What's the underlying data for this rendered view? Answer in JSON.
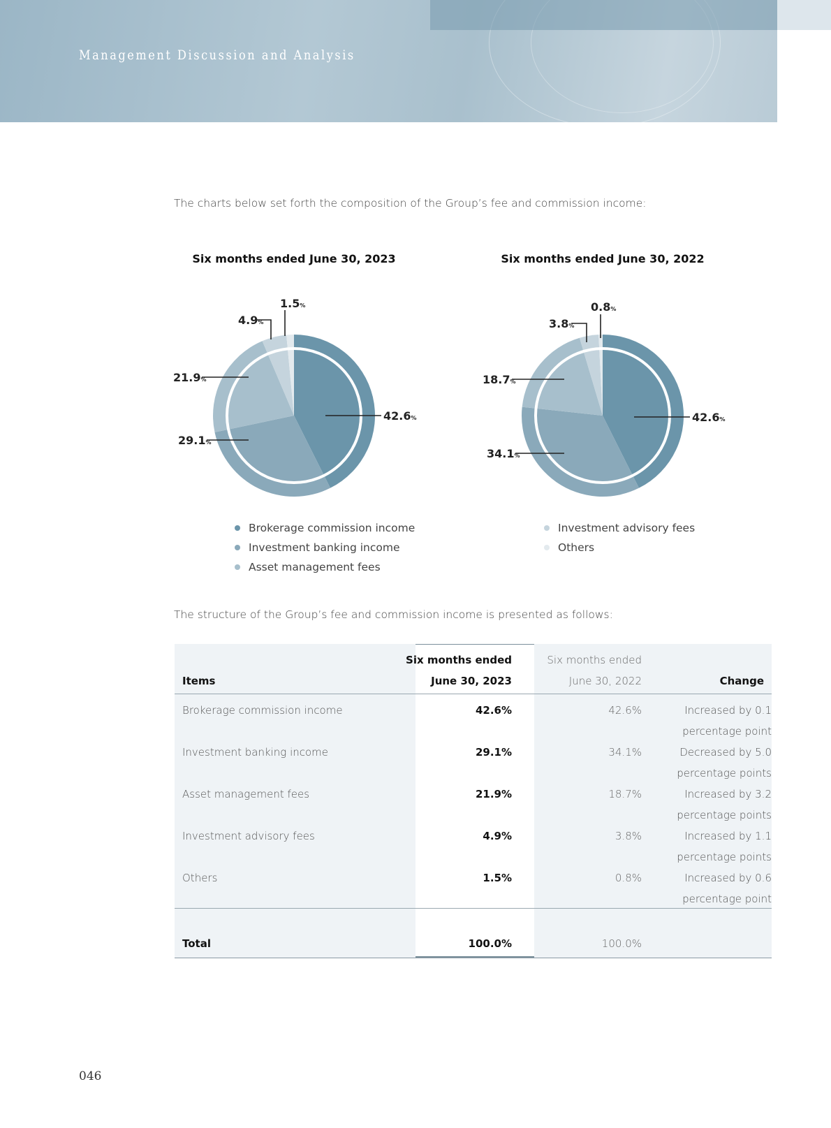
{
  "header": {
    "title": "Management Discussion and Analysis"
  },
  "intro": "The charts below set forth the composition of the Group’s fee and commission income:",
  "chart_data": [
    {
      "type": "pie",
      "title": "Six months ended June 30, 2023",
      "unit": "%",
      "labels": [
        "Brokerage commission income",
        "Investment banking income",
        "Asset management fees",
        "Investment advisory fees",
        "Others"
      ],
      "values": [
        42.6,
        29.1,
        21.9,
        4.9,
        1.5
      ],
      "value_labels": [
        "42.6",
        "29.1",
        "21.9",
        "4.9",
        "1.5"
      ]
    },
    {
      "type": "pie",
      "title": "Six months ended June 30, 2022",
      "unit": "%",
      "labels": [
        "Brokerage commission income",
        "Investment banking income",
        "Asset management fees",
        "Investment advisory fees",
        "Others"
      ],
      "values": [
        42.6,
        34.1,
        18.7,
        3.8,
        0.8
      ],
      "value_labels": [
        "42.6",
        "34.1",
        "18.7",
        "3.8",
        "0.8"
      ]
    }
  ],
  "colors": [
    "#6b95aa",
    "#8aa9ba",
    "#a7bfcc",
    "#c5d4dd",
    "#e3eaee"
  ],
  "legend": [
    "Brokerage commission income",
    "Investment banking income",
    "Asset management fees",
    "Investment advisory fees",
    "Others"
  ],
  "structure_text": "The structure of the Group’s fee and commission income is presented as follows:",
  "table": {
    "headers": {
      "items": "Items",
      "col2a": "Six months ended",
      "col2b": "June 30, 2023",
      "col3a": "Six months ended",
      "col3b": "June 30, 2022",
      "change": "Change"
    },
    "rows": [
      {
        "item": "Brokerage commission income",
        "y2023": "42.6%",
        "y2022": "42.6%",
        "change1": "Increased by 0.1",
        "change2": "percentage point"
      },
      {
        "item": "Investment banking income",
        "y2023": "29.1%",
        "y2022": "34.1%",
        "change1": "Decreased by 5.0",
        "change2": "percentage points"
      },
      {
        "item": "Asset management fees",
        "y2023": "21.9%",
        "y2022": "18.7%",
        "change1": "Increased by 3.2",
        "change2": "percentage points"
      },
      {
        "item": "Investment advisory fees",
        "y2023": "4.9%",
        "y2022": "3.8%",
        "change1": "Increased by 1.1",
        "change2": "percentage points"
      },
      {
        "item": "Others",
        "y2023": "1.5%",
        "y2022": "0.8%",
        "change1": "Increased by 0.6",
        "change2": "percentage point"
      }
    ],
    "total": {
      "item": "Total",
      "y2023": "100.0%",
      "y2022": "100.0%"
    }
  },
  "page_number": "046"
}
